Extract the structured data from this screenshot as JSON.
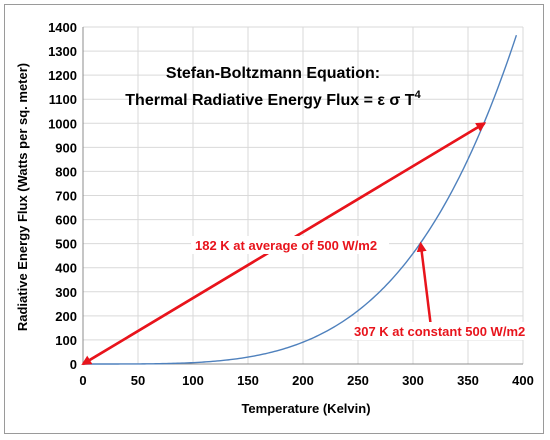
{
  "chart_data": {
    "type": "line",
    "title_line1": "Stefan-Boltzmann Equation:",
    "title_line2_prefix": "Thermal Radiative Energy Flux = ε σ T",
    "title_superscript": "4",
    "xlabel": "Temperature (Kelvin)",
    "ylabel": "Radiative Energy Flux (Watts per sq. meter)",
    "xlim": [
      0,
      400
    ],
    "ylim": [
      0,
      1400
    ],
    "xticks": [
      0,
      50,
      100,
      150,
      200,
      250,
      300,
      350,
      400
    ],
    "yticks": [
      0,
      100,
      200,
      300,
      400,
      500,
      600,
      700,
      800,
      900,
      1000,
      1100,
      1200,
      1300,
      1400
    ],
    "grid": true,
    "legend": "none",
    "series": [
      {
        "color": "#4f81bd",
        "x": [
          0,
          25,
          50,
          75,
          100,
          125,
          150,
          175,
          200,
          225,
          250,
          275,
          300,
          325,
          350,
          375,
          394
        ],
        "y": [
          0,
          0.02,
          0.35,
          1.8,
          5.67,
          13.8,
          28.7,
          53.2,
          90.7,
          145.3,
          221.5,
          324.3,
          459.3,
          632.6,
          850.9,
          1121.3,
          1366
        ]
      }
    ],
    "annotations": [
      {
        "text": "182 K at average of 500 W/m2",
        "x": 182,
        "y": 500,
        "arrow_from": [
          0,
          0
        ],
        "arrow_to": [
          365,
          1000
        ]
      },
      {
        "text": "307 K at constant 500 W/m2",
        "x": 307,
        "y": 500,
        "arrow_from": [
          317,
          130
        ],
        "arrow_to": [
          307,
          500
        ]
      }
    ],
    "colors": {
      "curve": "#4f81bd",
      "annotation": "#e8141c",
      "grid": "#d9d9d9"
    }
  }
}
